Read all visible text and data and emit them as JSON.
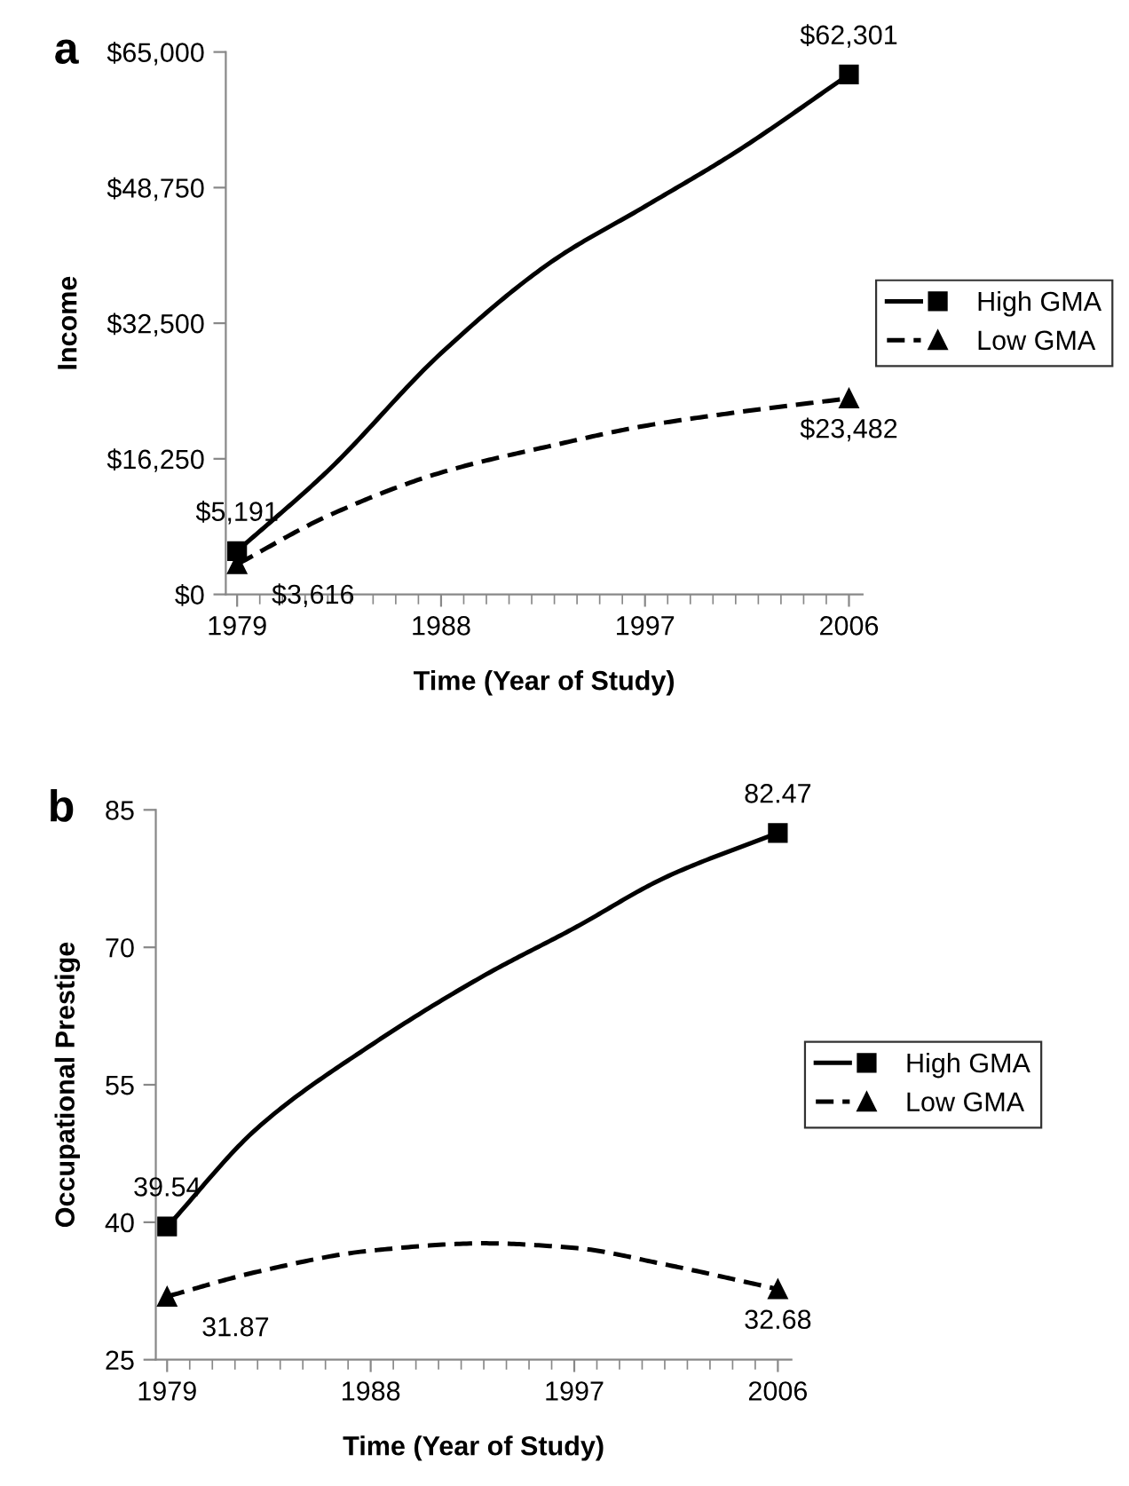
{
  "chart_data": [
    {
      "type": "line",
      "title": "a",
      "xlabel": "Time (Year of Study)",
      "ylabel": "Income",
      "x": [
        1979,
        1983,
        1988,
        1993,
        1997,
        2001,
        2006
      ],
      "series": [
        {
          "name": "High GMA",
          "type": "scatter",
          "color": "#000000",
          "marker": "square",
          "values": [
            5191,
            null,
            null,
            null,
            null,
            null,
            62301
          ],
          "value_labels": [
            "$5,191",
            null,
            null,
            null,
            null,
            null,
            "$62,301"
          ]
        },
        {
          "color": "#000000",
          "line_style": "solid",
          "values": [
            5200,
            14800,
            28900,
            40100,
            46500,
            53000,
            62300
          ]
        },
        {
          "name": "Low GMA",
          "type": "scatter",
          "color": "#000000",
          "marker": "triangle",
          "values": [
            3616,
            null,
            null,
            null,
            null,
            null,
            23482
          ],
          "value_labels": [
            "$3,616",
            null,
            null,
            null,
            null,
            null,
            "$23,482"
          ]
        },
        {
          "color": "#000000",
          "line_style": "dashed",
          "values": [
            3600,
            9400,
            14600,
            17900,
            20200,
            21800,
            23500
          ]
        }
      ],
      "xlim": [
        1978.5,
        2006.6
      ],
      "xticks": [
        1979,
        1988,
        1997,
        2006
      ],
      "ylim": [
        0,
        65000
      ],
      "yticks": [
        {
          "value": 0,
          "label": "$0"
        },
        {
          "value": 16250,
          "label": "$16,250"
        },
        {
          "value": 32500,
          "label": "$32,500"
        },
        {
          "value": 48750,
          "label": "$48,750"
        },
        {
          "value": 65000,
          "label": "$65,000"
        }
      ],
      "grid": false,
      "legend": "right"
    },
    {
      "type": "line",
      "title": "b",
      "xlabel": "Time (Year of Study)",
      "ylabel": "Occupational Prestige",
      "x": [
        1979,
        1983,
        1988,
        1993,
        1997,
        2001,
        2006
      ],
      "series": [
        {
          "name": "High GMA",
          "type": "scatter",
          "color": "#000000",
          "marker": "square",
          "values": [
            39.54,
            null,
            null,
            null,
            null,
            null,
            82.47
          ],
          "value_labels": [
            "39.54",
            null,
            null,
            null,
            null,
            null,
            "82.47"
          ]
        },
        {
          "color": "#000000",
          "line_style": "solid",
          "values": [
            39.5,
            50.3,
            59.3,
            66.9,
            72.1,
            77.6,
            82.5
          ]
        },
        {
          "name": "Low GMA",
          "type": "scatter",
          "color": "#000000",
          "marker": "triangle",
          "values": [
            31.87,
            null,
            null,
            null,
            null,
            null,
            32.68
          ],
          "value_labels": [
            "31.87",
            null,
            null,
            null,
            null,
            null,
            "32.68"
          ]
        },
        {
          "color": "#000000",
          "line_style": "dashed",
          "values": [
            31.9,
            34.6,
            36.9,
            37.7,
            37.2,
            35.4,
            32.7
          ]
        }
      ],
      "xlim": [
        1978.5,
        2006.6
      ],
      "xticks": [
        1979,
        1988,
        1997,
        2006
      ],
      "ylim": [
        25,
        85
      ],
      "yticks": [
        25,
        40,
        55,
        70,
        85
      ],
      "grid": false,
      "legend": "right"
    }
  ]
}
